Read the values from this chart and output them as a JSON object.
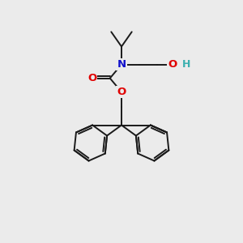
{
  "background_color": "#ebebeb",
  "bond_color": "#1a1a1a",
  "atom_colors": {
    "O": "#e00000",
    "N": "#1010cc",
    "H_O": "#3aafaf",
    "C": "#1a1a1a"
  },
  "figsize": [
    3.0,
    3.0
  ],
  "dpi": 100,
  "lw": 1.4,
  "fontsize": 9.5
}
